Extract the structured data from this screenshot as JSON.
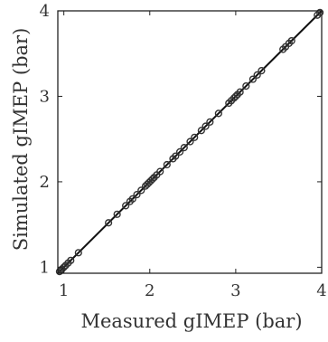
{
  "chart_data": {
    "type": "scatter",
    "title": "",
    "xlabel": "Measured gIMEP (bar)",
    "ylabel": "Simulated gIMEP (bar)",
    "xlim": [
      0.93,
      4.0
    ],
    "ylim": [
      0.93,
      4.0
    ],
    "xticks": [
      "1",
      "2",
      "3",
      "4"
    ],
    "yticks": [
      "1",
      "2",
      "3",
      "4"
    ],
    "grid": false,
    "legend": "none",
    "colors": {
      "line": "#111111",
      "marker": "#333333",
      "axes": "#222222"
    },
    "reference_line": {
      "x": [
        0.93,
        4.0
      ],
      "y": [
        0.93,
        4.0
      ]
    },
    "series": [
      {
        "marker": "circle-open",
        "points": [
          [
            0.95,
            0.95
          ],
          [
            0.97,
            0.97
          ],
          [
            0.98,
            0.98
          ],
          [
            1.0,
            1.0
          ],
          [
            1.02,
            1.02
          ],
          [
            1.05,
            1.05
          ],
          [
            1.08,
            1.08
          ],
          [
            1.17,
            1.17
          ],
          [
            1.52,
            1.52
          ],
          [
            1.62,
            1.62
          ],
          [
            1.72,
            1.72
          ],
          [
            1.77,
            1.77
          ],
          [
            1.8,
            1.8
          ],
          [
            1.85,
            1.85
          ],
          [
            1.9,
            1.9
          ],
          [
            1.95,
            1.95
          ],
          [
            1.97,
            1.97
          ],
          [
            1.99,
            1.99
          ],
          [
            2.01,
            2.01
          ],
          [
            2.03,
            2.03
          ],
          [
            2.05,
            2.05
          ],
          [
            2.08,
            2.08
          ],
          [
            2.12,
            2.12
          ],
          [
            2.2,
            2.2
          ],
          [
            2.27,
            2.27
          ],
          [
            2.3,
            2.3
          ],
          [
            2.35,
            2.35
          ],
          [
            2.4,
            2.4
          ],
          [
            2.47,
            2.47
          ],
          [
            2.52,
            2.52
          ],
          [
            2.6,
            2.6
          ],
          [
            2.65,
            2.65
          ],
          [
            2.7,
            2.7
          ],
          [
            2.8,
            2.8
          ],
          [
            2.92,
            2.92
          ],
          [
            2.95,
            2.95
          ],
          [
            2.98,
            2.98
          ],
          [
            3.0,
            3.0
          ],
          [
            3.02,
            3.02
          ],
          [
            3.05,
            3.05
          ],
          [
            3.12,
            3.12
          ],
          [
            3.2,
            3.2
          ],
          [
            3.25,
            3.25
          ],
          [
            3.3,
            3.3
          ],
          [
            3.55,
            3.55
          ],
          [
            3.58,
            3.58
          ],
          [
            3.62,
            3.62
          ],
          [
            3.65,
            3.65
          ],
          [
            3.95,
            3.95
          ],
          [
            3.98,
            3.98
          ]
        ]
      }
    ]
  }
}
